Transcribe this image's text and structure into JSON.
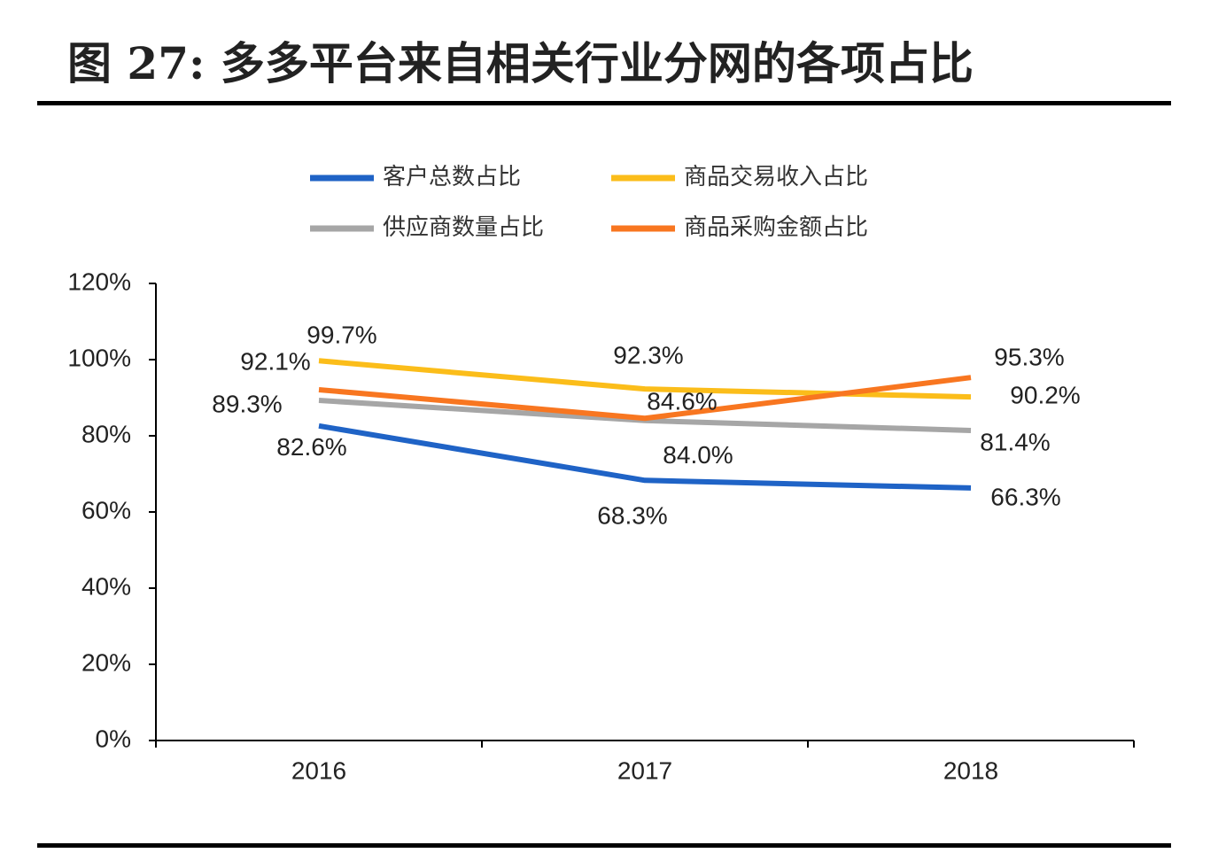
{
  "chart_data": {
    "type": "line",
    "title": "图 27: 多多平台来自相关行业分网的各项占比",
    "categories": [
      "2016",
      "2017",
      "2018"
    ],
    "series": [
      {
        "name": "客户总数占比",
        "color": "#1f63c6",
        "values": [
          82.6,
          68.3,
          66.3
        ],
        "value_labels": [
          "82.6%",
          "68.3%",
          "66.3%"
        ]
      },
      {
        "name": "商品交易收入占比",
        "color": "#fbbd1a",
        "values": [
          99.7,
          92.3,
          90.2
        ],
        "value_labels": [
          "99.7%",
          "92.3%",
          "90.2%"
        ]
      },
      {
        "name": "供应商数量占比",
        "color": "#a6a6a6",
        "values": [
          89.3,
          84.0,
          81.4
        ],
        "value_labels": [
          "89.3%",
          "84.0%",
          "81.4%"
        ]
      },
      {
        "name": "商品采购金额占比",
        "color": "#f87620",
        "values": [
          92.1,
          84.6,
          95.3
        ],
        "value_labels": [
          "92.1%",
          "84.6%",
          "95.3%"
        ]
      }
    ],
    "ylim": [
      0,
      120
    ],
    "yticks": [
      {
        "value": 0,
        "label": "0%"
      },
      {
        "value": 20,
        "label": "20%"
      },
      {
        "value": 40,
        "label": "40%"
      },
      {
        "value": 60,
        "label": "60%"
      },
      {
        "value": 80,
        "label": "80%"
      },
      {
        "value": 100,
        "label": "100%"
      },
      {
        "value": 120,
        "label": "120%"
      }
    ],
    "grid": false,
    "legend": "top"
  }
}
